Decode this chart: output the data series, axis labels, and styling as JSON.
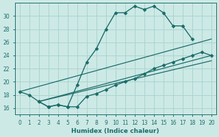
{
  "xlabel": "Humidex (Indice chaleur)",
  "bg_color": "#cce9e5",
  "grid_color": "#aad4cf",
  "line_color": "#1a6b6b",
  "xlim": [
    -0.5,
    20.5
  ],
  "ylim": [
    15.0,
    32.0
  ],
  "yticks": [
    16,
    18,
    20,
    22,
    24,
    26,
    28,
    30
  ],
  "xticks": [
    0,
    1,
    2,
    3,
    4,
    5,
    6,
    7,
    8,
    9,
    10,
    11,
    12,
    13,
    14,
    15,
    16,
    17,
    18,
    19,
    20
  ],
  "series": [
    {
      "x": [
        0,
        1,
        2,
        3,
        4,
        5,
        6,
        7,
        8,
        9,
        10,
        11,
        12,
        13,
        14,
        15,
        16,
        17,
        18
      ],
      "y": [
        18.5,
        18.0,
        17.0,
        16.2,
        16.5,
        16.2,
        19.5,
        23.0,
        25.0,
        28.0,
        30.5,
        30.5,
        31.5,
        31.0,
        31.5,
        30.5,
        28.5,
        28.5,
        26.5
      ],
      "marker": "D",
      "markersize": 2.5,
      "linewidth": 1.0
    },
    {
      "x": [
        2,
        3,
        4,
        5,
        6,
        7,
        8,
        9,
        10,
        11,
        12,
        13,
        14,
        15,
        16,
        17,
        18,
        19,
        20
      ],
      "y": [
        17.0,
        16.2,
        16.5,
        16.2,
        16.2,
        17.8,
        18.2,
        18.8,
        19.5,
        20.0,
        20.5,
        21.2,
        22.0,
        22.5,
        23.0,
        23.5,
        24.0,
        24.5,
        24.0
      ],
      "marker": "D",
      "markersize": 2.5,
      "linewidth": 1.0
    },
    {
      "x": [
        0,
        20
      ],
      "y": [
        18.5,
        26.5
      ],
      "marker": null,
      "markersize": 0,
      "linewidth": 0.9
    },
    {
      "x": [
        2,
        20
      ],
      "y": [
        17.0,
        24.0
      ],
      "marker": null,
      "markersize": 0,
      "linewidth": 0.9
    },
    {
      "x": [
        2,
        20
      ],
      "y": [
        17.0,
        23.2
      ],
      "marker": null,
      "markersize": 0,
      "linewidth": 0.9
    }
  ]
}
